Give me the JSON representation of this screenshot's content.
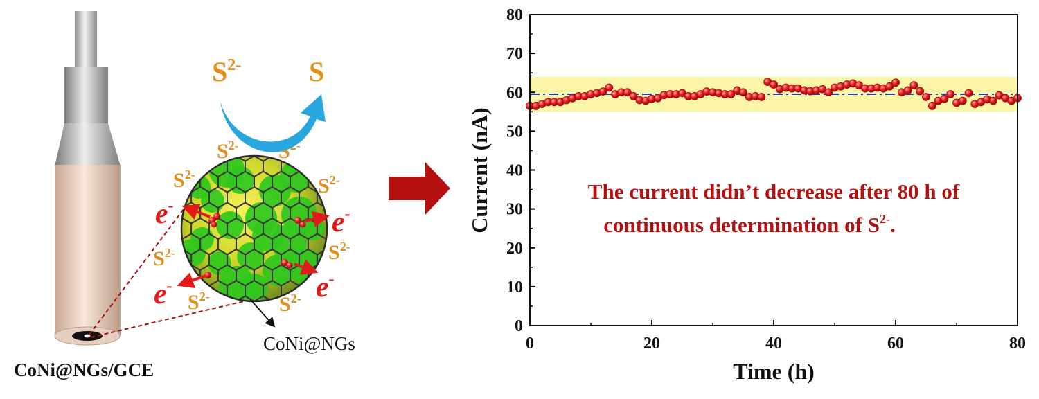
{
  "schematic": {
    "electrode_label": "CoNi@NGs/GCE",
    "particle_label": "CoNi@NGs",
    "reactant": "S",
    "reactant_charge": "2-",
    "product": "S",
    "electron": "e",
    "electron_charge": "-",
    "colors": {
      "sulfide_label": "#e08f1c",
      "electron": "#e31a1a",
      "arrow": "#2aa6de",
      "big_arrow": "#b51111",
      "graphene": "#3a3a3a",
      "cobalt_green": "#2fc81e",
      "nickel_yellow": "#f2ef2a"
    }
  },
  "chart_data": {
    "type": "scatter",
    "xlabel": "Time (h)",
    "ylabel": "Current (nA)",
    "xlim": [
      0,
      80
    ],
    "ylim": [
      0,
      80
    ],
    "xticks": [
      0,
      20,
      40,
      60,
      80
    ],
    "yticks": [
      0,
      10,
      20,
      30,
      40,
      50,
      60,
      70,
      80
    ],
    "grid": false,
    "band": {
      "y_low": 55,
      "y_high": 64,
      "color": "#fbf5a8"
    },
    "reference_line": {
      "y": 59.5,
      "color": "#1f3fbf",
      "style": "dash-dot"
    },
    "annotation": {
      "line1": "The current didn’t decrease after 80 h of",
      "line2_prefix": "continuous determination of S",
      "line2_sup": "2-",
      "line2_suffix": ".",
      "color": "#b51111"
    },
    "series": [
      {
        "marker_color": "#e01a1a",
        "x": [
          0,
          1,
          2,
          3,
          4,
          5,
          6,
          7,
          8,
          9,
          10,
          11,
          12,
          13,
          14,
          15,
          16,
          17,
          18,
          19,
          20,
          21,
          22,
          23,
          24,
          25,
          26,
          27,
          28,
          29,
          30,
          31,
          32,
          33,
          34,
          35,
          36,
          37,
          38,
          39,
          40,
          41,
          42,
          43,
          44,
          45,
          46,
          47,
          48,
          49,
          50,
          51,
          52,
          53,
          54,
          55,
          56,
          57,
          58,
          59,
          60,
          61,
          62,
          63,
          64,
          65,
          66,
          67,
          68,
          69,
          70,
          71,
          72,
          73,
          74,
          75,
          76,
          77,
          78,
          79,
          80
        ],
        "y": [
          56.5,
          56.5,
          57.0,
          57.5,
          57.5,
          57.5,
          58.0,
          58.5,
          59.0,
          59.0,
          59.5,
          59.8,
          60.2,
          61.2,
          59.5,
          60.0,
          60.0,
          59.0,
          58.0,
          57.8,
          58.3,
          58.5,
          59.3,
          59.5,
          59.5,
          59.8,
          59.0,
          59.0,
          59.5,
          60.2,
          60.0,
          59.8,
          59.5,
          59.5,
          60.5,
          60.0,
          58.8,
          59.0,
          58.8,
          62.7,
          62.0,
          60.8,
          61.2,
          61.0,
          61.0,
          60.5,
          60.3,
          60.5,
          60.8,
          60.0,
          61.2,
          61.5,
          62.0,
          62.3,
          61.8,
          61.0,
          61.0,
          61.2,
          61.0,
          61.5,
          62.5,
          60.0,
          60.5,
          61.8,
          60.3,
          58.8,
          56.5,
          57.8,
          58.3,
          59.5,
          57.3,
          57.8,
          59.8,
          57.0,
          57.5,
          58.2,
          57.8,
          59.2,
          58.5,
          57.8,
          58.5
        ]
      }
    ]
  }
}
